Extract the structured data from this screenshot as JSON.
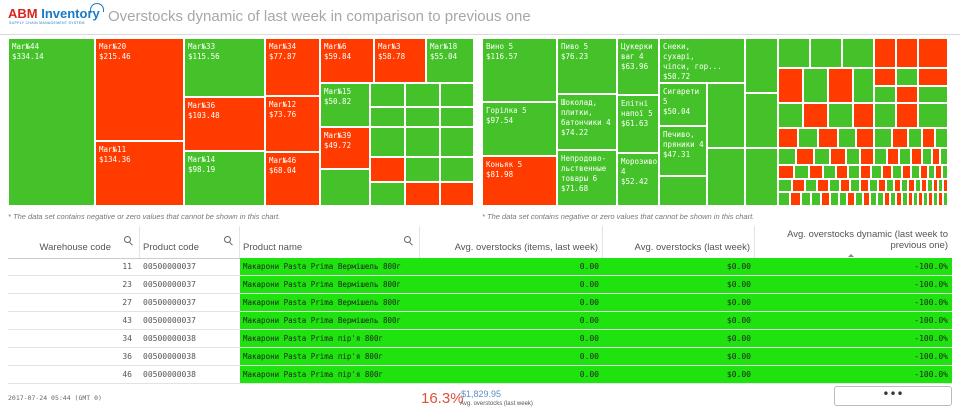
{
  "header": {
    "logo_text_a": "ABM",
    "logo_text_b": " Inventory",
    "logo_sub": "SUPPLY CHAIN MANAGEMENT SYSTEM",
    "title": "Overstocks dynamic of last week in comparison to previous one"
  },
  "left_treemap": {
    "cells": [
      {
        "label": "Mar№44\n$334.14",
        "status": "green"
      },
      {
        "label": "Mar№20\n$215.46",
        "status": "red"
      },
      {
        "label": "Mar№11\n$134.36",
        "status": "red"
      },
      {
        "label": "Mar№33\n$115.56",
        "status": "green"
      },
      {
        "label": "Mar№36\n$103.48",
        "status": "red"
      },
      {
        "label": "Mar№14\n$98.19",
        "status": "green"
      },
      {
        "label": "Mar№34\n$77.87",
        "status": "red"
      },
      {
        "label": "Mar№12\n$73.76",
        "status": "red"
      },
      {
        "label": "Mar№46\n$68.04",
        "status": "red"
      },
      {
        "label": "Mar№6\n$59.84",
        "status": "red"
      },
      {
        "label": "Mar№3\n$58.78",
        "status": "red"
      },
      {
        "label": "Mar№18\n$55.04",
        "status": "green"
      },
      {
        "label": "Mar№15\n$50.82",
        "status": "green"
      },
      {
        "label": "Mar№39\n$49.72",
        "status": "red"
      }
    ],
    "note": "* The data set contains negative or zero values that cannot be shown in this chart."
  },
  "right_treemap": {
    "cells": [
      {
        "label": "Вино 5\n$116.57",
        "status": "green"
      },
      {
        "label": "Горілка 5\n$97.54",
        "status": "green"
      },
      {
        "label": "Коньяк 5\n$81.98",
        "status": "red"
      },
      {
        "label": "Пиво 5\n$76.23",
        "status": "green"
      },
      {
        "label": "Шоколад,\nплитки,\nбатончики 4\n$74.22",
        "status": "green"
      },
      {
        "label": "Непродово-\nльственные\nтовары 6\n$71.68",
        "status": "green"
      },
      {
        "label": "Цукерки\nваг 4\n$63.96",
        "status": "green"
      },
      {
        "label": "Елітні\nнапої 5\n$61.63",
        "status": "green"
      },
      {
        "label": "Морозиво\n4\n$52.42",
        "status": "green"
      },
      {
        "label": "Снеки,\nсухарі,\nчіпси, гор...\n$50.72",
        "status": "green"
      },
      {
        "label": "Сигарети 5\n$50.04",
        "status": "green"
      },
      {
        "label": "Печиво,\nпряники 4\n$47.31",
        "status": "green"
      }
    ],
    "note": "* The data set contains negative or zero values that cannot be shown in this chart."
  },
  "table": {
    "columns": [
      "Warehouse code",
      "Product code",
      "Product name",
      "Avg. overstocks (items, last week)",
      "Avg. overstocks (last week)",
      "Avg. overstocks dynamic (last week to previous one)"
    ],
    "rows": [
      {
        "wh": "11",
        "code": "00500000037",
        "name": "Макарони Pasta Prima Вермішель 800г",
        "items": "0.00",
        "amount": "$0.00",
        "dynamic": "-100.0%"
      },
      {
        "wh": "23",
        "code": "00500000037",
        "name": "Макарони Pasta Prima Вермішель 800г",
        "items": "0.00",
        "amount": "$0.00",
        "dynamic": "-100.0%"
      },
      {
        "wh": "27",
        "code": "00500000037",
        "name": "Макарони Pasta Prima Вермішель 800г",
        "items": "0.00",
        "amount": "$0.00",
        "dynamic": "-100.0%"
      },
      {
        "wh": "43",
        "code": "00500000037",
        "name": "Макарони Pasta Prima Вермішель 800г",
        "items": "0.00",
        "amount": "$0.00",
        "dynamic": "-100.0%"
      },
      {
        "wh": "34",
        "code": "00500000038",
        "name": "Макарони Pasta Prima пір'я 800г",
        "items": "0.00",
        "amount": "$0.00",
        "dynamic": "-100.0%"
      },
      {
        "wh": "36",
        "code": "00500000038",
        "name": "Макарони Pasta Prima пір'я 800г",
        "items": "0.00",
        "amount": "$0.00",
        "dynamic": "-100.0%"
      },
      {
        "wh": "46",
        "code": "00500000038",
        "name": "Макарони Pasta Prima пір'я 800г",
        "items": "0.00",
        "amount": "$0.00",
        "dynamic": "-100.0%"
      }
    ]
  },
  "footer": {
    "timestamp": "2017-07-24 05:44 (GMT 0)",
    "kpi_percent": "16.3%",
    "kpi_value": "$1,829.95",
    "kpi_label": "Avg. overstocks (last week)",
    "more_label": "•••"
  },
  "colors": {
    "green": "#45c229",
    "red": "#ff3b00",
    "row_green": "#1fe30e"
  }
}
